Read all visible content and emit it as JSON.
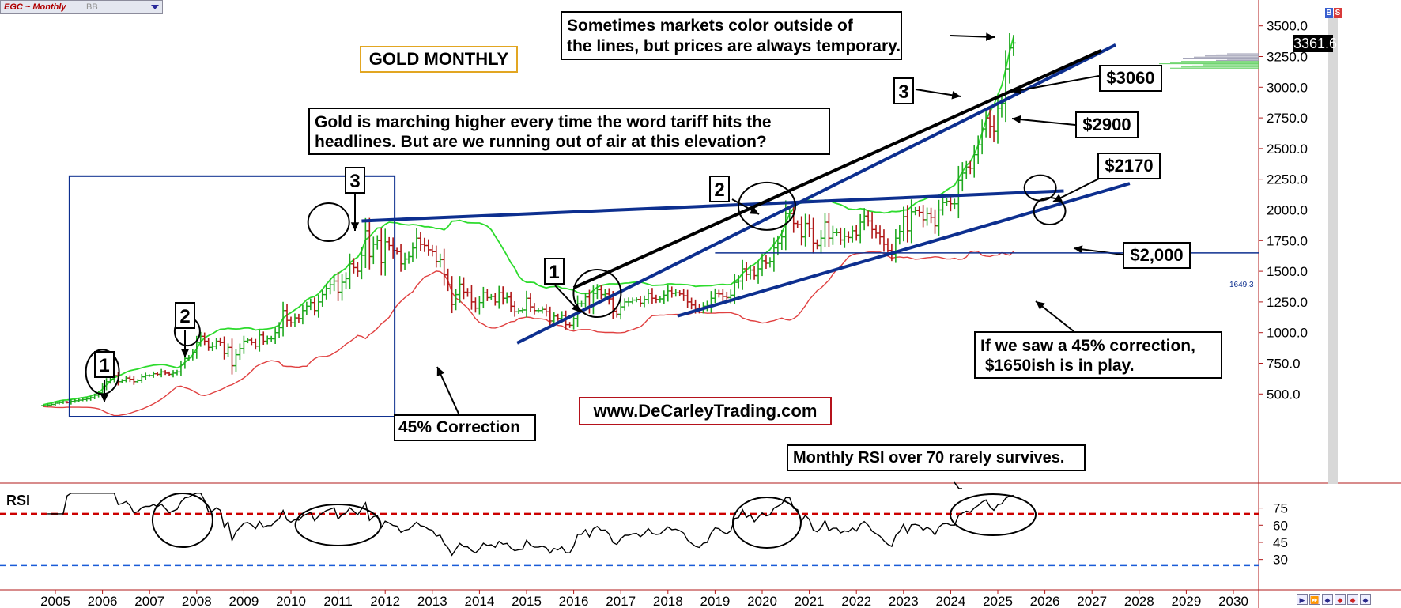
{
  "header": {
    "symbol": "EGC ~ Monthly",
    "indicator": "BB",
    "last_price": "3361.6",
    "buy_sell": [
      "B",
      "S"
    ]
  },
  "chart_title": "GOLD MONTHLY",
  "website": "www.DeCarleyTrading.com",
  "rsi_label": "RSI",
  "annotations": {
    "sometimes": [
      "Sometimes markets color outside of",
      "the lines, but prices are always temporary."
    ],
    "tariff": [
      "Gold is marching higher every time the word tariff hits the",
      "headlines. But are we running out of air at this elevation?"
    ],
    "correction": "45% Correction",
    "rsi_note": "Monthly RSI over 70 rarely survives.",
    "correction_45": [
      "If we saw a 45% correction,",
      " $1650ish is in play."
    ],
    "levels": [
      "$3060",
      "$2900",
      "$2170",
      "$2,000"
    ],
    "horizontal_line_label": "1649.3",
    "wave_labels_left": [
      "1",
      "2",
      "3"
    ],
    "wave_labels_right": [
      "1",
      "2",
      "3"
    ]
  },
  "colors": {
    "up_bar": "#1fa81f",
    "down_bar": "#b01818",
    "upper_band": "#2ddb2d",
    "lower_band": "#e04040",
    "trend_blue": "#0d2f8f",
    "trend_black": "#000000",
    "rsi_overbought": "#cc0000",
    "rsi_oversold": "#1a5cd8",
    "title_border": "#e2a622",
    "web_border": "#b5121b"
  },
  "nav_icons": [
    "step-forward-icon",
    "fast-forward-icon",
    "zoom-diamond-icon",
    "zoom-diamond-red-icon",
    "zoom-diamond-red-icon",
    "zoom-diamond-icon"
  ],
  "chart_data": {
    "type": "ohlc",
    "title": "GOLD MONTHLY",
    "price_axis": {
      "ticks": [
        500,
        750,
        1000,
        1250,
        1500,
        1750,
        2000,
        2250,
        2500,
        2750,
        3000,
        3250,
        3500
      ],
      "tick_labels": [
        "500.0",
        "750.0",
        "1000.0",
        "1250.0",
        "1500.0",
        "1750.0",
        "2000.0",
        "2250.0",
        "2500.0",
        "2750.0",
        "3000.0",
        "3250.0",
        "3500.0"
      ]
    },
    "x_axis": {
      "years": [
        "2005",
        "2006",
        "2007",
        "2008",
        "2009",
        "2010",
        "2011",
        "2012",
        "2013",
        "2014",
        "2015",
        "2016",
        "2017",
        "2018",
        "2019",
        "2020",
        "2021",
        "2022",
        "2023",
        "2024",
        "2025",
        "2026",
        "2027",
        "2028",
        "2029",
        "2030"
      ]
    },
    "series": [
      {
        "name": "Gold Futures",
        "approx_monthly_close_by_year": {
          "2004": [
            405,
            410,
            415
          ],
          "2005": [
            425,
            430,
            435,
            430,
            440,
            445,
            450,
            455,
            460,
            470,
            490,
            510
          ],
          "2006": [
            560,
            600,
            620,
            650,
            600,
            610,
            630,
            620,
            600,
            610,
            640,
            650
          ],
          "2007": [
            650,
            665,
            660,
            680,
            670,
            660,
            670,
            680,
            740,
            790,
            800,
            840
          ],
          "2008": [
            920,
            970,
            930,
            880,
            890,
            930,
            920,
            830,
            880,
            730,
            820,
            870
          ],
          "2009": [
            930,
            940,
            920,
            890,
            980,
            930,
            950,
            950,
            1000,
            1040,
            1180,
            1100
          ],
          "2010": [
            1080,
            1120,
            1115,
            1180,
            1215,
            1245,
            1180,
            1250,
            1310,
            1360,
            1390,
            1420
          ],
          "2011": [
            1330,
            1410,
            1440,
            1560,
            1530,
            1500,
            1630,
            1830,
            1620,
            1720,
            1750,
            1570
          ],
          "2012": [
            1740,
            1710,
            1670,
            1660,
            1560,
            1600,
            1620,
            1690,
            1770,
            1720,
            1710,
            1675
          ],
          "2013": [
            1660,
            1580,
            1595,
            1470,
            1390,
            1230,
            1310,
            1395,
            1330,
            1325,
            1250,
            1200
          ],
          "2014": [
            1245,
            1325,
            1285,
            1295,
            1250,
            1325,
            1280,
            1290,
            1215,
            1170,
            1180,
            1185
          ],
          "2015": [
            1280,
            1210,
            1180,
            1180,
            1190,
            1170,
            1095,
            1135,
            1115,
            1140,
            1065,
            1060
          ],
          "2016": [
            1115,
            1235,
            1235,
            1290,
            1215,
            1320,
            1350,
            1310,
            1315,
            1275,
            1175,
            1150
          ],
          "2017": [
            1210,
            1250,
            1250,
            1265,
            1270,
            1240,
            1270,
            1320,
            1280,
            1270,
            1275,
            1305
          ],
          "2018": [
            1340,
            1320,
            1325,
            1315,
            1300,
            1250,
            1225,
            1200,
            1190,
            1215,
            1220,
            1280
          ],
          "2019": [
            1320,
            1315,
            1295,
            1285,
            1305,
            1410,
            1420,
            1520,
            1475,
            1510,
            1465,
            1520
          ],
          "2020": [
            1585,
            1565,
            1580,
            1690,
            1730,
            1780,
            1970,
            1970,
            1890,
            1880,
            1780,
            1890
          ],
          "2021": [
            1850,
            1730,
            1710,
            1770,
            1900,
            1770,
            1815,
            1815,
            1755,
            1785,
            1775,
            1830
          ],
          "2022": [
            1795,
            1900,
            1950,
            1910,
            1840,
            1810,
            1780,
            1720,
            1670,
            1640,
            1770,
            1825
          ],
          "2023": [
            1945,
            1830,
            1985,
            1995,
            1980,
            1920,
            1970,
            1940,
            1870,
            2000,
            2060,
            2070
          ],
          "2024": [
            2050,
            2050,
            2240,
            2300,
            2350,
            2340,
            2450,
            2530,
            2660,
            2750,
            2680,
            2640
          ],
          "2025": [
            2830,
            2870,
            3150,
            3320,
            3360
          ]
        }
      }
    ],
    "bands": [
      {
        "name": "Upper band",
        "color": "#2ddb2d"
      },
      {
        "name": "Lower band",
        "color": "#e04040"
      }
    ],
    "rsi": {
      "label": "RSI",
      "ticks": [
        30,
        45,
        60,
        75
      ],
      "overbought": 70,
      "oversold": 25
    },
    "horizontal_levels": [
      1649.3
    ],
    "price_marker": 3361.6
  }
}
